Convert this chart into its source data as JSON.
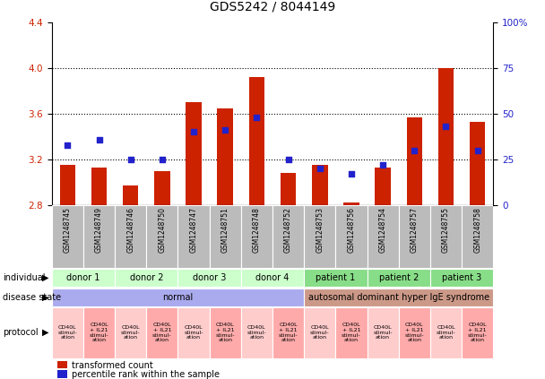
{
  "title": "GDS5242 / 8044149",
  "samples": [
    "GSM1248745",
    "GSM1248749",
    "GSM1248746",
    "GSM1248750",
    "GSM1248747",
    "GSM1248751",
    "GSM1248748",
    "GSM1248752",
    "GSM1248753",
    "GSM1248756",
    "GSM1248754",
    "GSM1248757",
    "GSM1248755",
    "GSM1248758"
  ],
  "transformed_counts": [
    3.15,
    3.13,
    2.97,
    3.1,
    3.7,
    3.65,
    3.92,
    3.08,
    3.15,
    2.82,
    3.13,
    3.57,
    4.0,
    3.53
  ],
  "percentile_ranks": [
    33,
    36,
    25,
    25,
    40,
    41,
    48,
    25,
    20,
    17,
    22,
    30,
    43,
    30
  ],
  "ylim_left": [
    2.8,
    4.4
  ],
  "ylim_right": [
    0,
    100
  ],
  "yticks_left": [
    2.8,
    3.2,
    3.6,
    4.0,
    4.4
  ],
  "yticks_right": [
    0,
    25,
    50,
    75,
    100
  ],
  "ytick_labels_right": [
    "0",
    "25",
    "50",
    "75",
    "100%"
  ],
  "bar_color": "#cc2200",
  "dot_color": "#2222cc",
  "individuals": [
    {
      "label": "donor 1",
      "span": [
        0,
        2
      ],
      "color": "#ccffcc"
    },
    {
      "label": "donor 2",
      "span": [
        2,
        4
      ],
      "color": "#ccffcc"
    },
    {
      "label": "donor 3",
      "span": [
        4,
        6
      ],
      "color": "#ccffcc"
    },
    {
      "label": "donor 4",
      "span": [
        6,
        8
      ],
      "color": "#ccffcc"
    },
    {
      "label": "patient 1",
      "span": [
        8,
        10
      ],
      "color": "#88dd88"
    },
    {
      "label": "patient 2",
      "span": [
        10,
        12
      ],
      "color": "#88dd88"
    },
    {
      "label": "patient 3",
      "span": [
        12,
        14
      ],
      "color": "#88dd88"
    }
  ],
  "disease_states": [
    {
      "label": "normal",
      "span": [
        0,
        8
      ],
      "color": "#aaaaee"
    },
    {
      "label": "autosomal dominant hyper IgE syndrome",
      "span": [
        8,
        14
      ],
      "color": "#cc9988"
    }
  ],
  "protocols": [
    {
      "label": "CD40L\nstimul-\nation",
      "color": "#ffcccc"
    },
    {
      "label": "CD40L\n+ IL21\nstimul-\nation",
      "color": "#ffaaaa"
    },
    {
      "label": "CD40L\nstimul-\nation",
      "color": "#ffcccc"
    },
    {
      "label": "CD40L\n+ IL21\nstimul-\nation",
      "color": "#ffaaaa"
    },
    {
      "label": "CD40L\nstimul-\nation",
      "color": "#ffcccc"
    },
    {
      "label": "CD40L\n+ IL21\nstimul-\nation",
      "color": "#ffaaaa"
    },
    {
      "label": "CD40L\nstimul-\nation",
      "color": "#ffcccc"
    },
    {
      "label": "CD40L\n+ IL21\nstimul-\nation",
      "color": "#ffaaaa"
    },
    {
      "label": "CD40L\nstimul-\nation",
      "color": "#ffcccc"
    },
    {
      "label": "CD40L\n+ IL21\nstimul-\nation",
      "color": "#ffaaaa"
    },
    {
      "label": "CD40L\nstimul-\nation",
      "color": "#ffcccc"
    },
    {
      "label": "CD40L\n+ IL21\nstimul-\nation",
      "color": "#ffaaaa"
    },
    {
      "label": "CD40L\nstimul-\nation",
      "color": "#ffcccc"
    },
    {
      "label": "CD40L\n+ IL21\nstimul-\nation",
      "color": "#ffaaaa"
    }
  ],
  "legend_bar_label": "transformed count",
  "legend_dot_label": "percentile rank within the sample",
  "bar_width": 0.5,
  "dot_size": 25,
  "title_fontsize": 10,
  "sample_color": "#bbbbbb",
  "row_label_fontsize": 7,
  "protocol_fontsize": 4.5,
  "sample_fontsize": 5.5,
  "indiv_fontsize": 7,
  "disease_fontsize": 7
}
